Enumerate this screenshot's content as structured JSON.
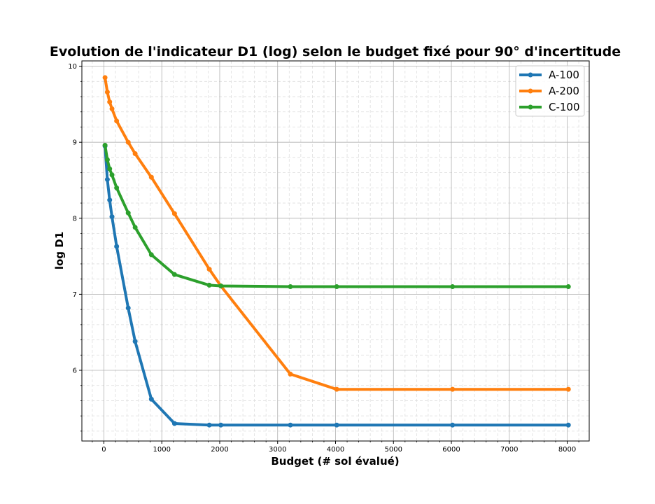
{
  "chart_data": {
    "type": "line",
    "title": "Evolution de l'indicateur  D1 (log) selon le budget fixé pour 90° d'incertitude",
    "xlabel": "Budget (# sol évalué)",
    "ylabel": "log D1",
    "xlim": [
      -380,
      8380
    ],
    "ylim": [
      5.07,
      10.07
    ],
    "x_ticks": [
      0,
      1000,
      2000,
      3000,
      4000,
      5000,
      6000,
      7000,
      8000
    ],
    "x_tick_labels": [
      "0",
      "1000",
      "2000",
      "3000",
      "4000",
      "5000",
      "6000",
      "7000",
      "8000"
    ],
    "y_ticks": [
      6,
      7,
      8,
      9,
      10
    ],
    "y_tick_labels": [
      "6",
      "7",
      "8",
      "9",
      "10"
    ],
    "grid": true,
    "minor_grid": true,
    "legend_position": "top-right",
    "series": [
      {
        "name": "A-100",
        "color": "#1f77b4",
        "x": [
          20,
          60,
          100,
          140,
          220,
          420,
          540,
          820,
          1220,
          1820,
          2020,
          3220,
          4020,
          6020,
          8020
        ],
        "y": [
          8.95,
          8.51,
          8.24,
          8.02,
          7.63,
          6.82,
          6.38,
          5.62,
          5.3,
          5.28,
          5.28,
          5.28,
          5.28,
          5.28,
          5.28
        ]
      },
      {
        "name": "A-200",
        "color": "#ff7f0e",
        "x": [
          20,
          60,
          100,
          140,
          220,
          420,
          540,
          820,
          1220,
          1820,
          2020,
          3220,
          4020,
          6020,
          8020
        ],
        "y": [
          9.85,
          9.66,
          9.53,
          9.44,
          9.28,
          9.0,
          8.85,
          8.54,
          8.06,
          7.33,
          7.11,
          5.95,
          5.75,
          5.75,
          5.75
        ]
      },
      {
        "name": "C-100",
        "color": "#2ca02c",
        "x": [
          20,
          60,
          100,
          140,
          220,
          420,
          540,
          820,
          1220,
          1820,
          2020,
          3220,
          4020,
          6020,
          8020
        ],
        "y": [
          8.96,
          8.77,
          8.65,
          8.57,
          8.4,
          8.07,
          7.88,
          7.52,
          7.26,
          7.12,
          7.11,
          7.1,
          7.1,
          7.1,
          7.1
        ]
      }
    ]
  }
}
